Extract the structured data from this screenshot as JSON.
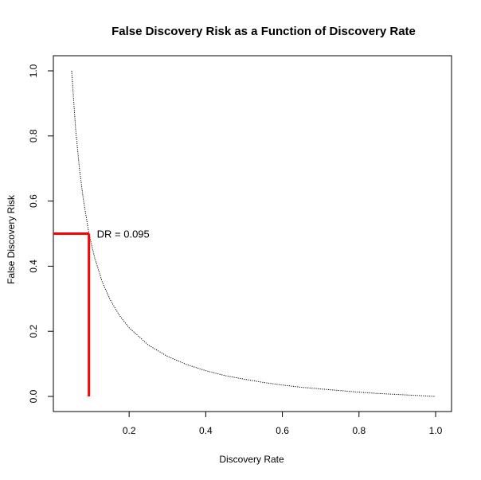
{
  "chart_data": {
    "type": "line",
    "title": "False Discovery Risk as a Function of Discovery Rate",
    "xlabel": "Discovery Rate",
    "ylabel": "False Discovery Risk",
    "xlim": [
      0.05,
      1.0
    ],
    "ylim": [
      0.0,
      1.0
    ],
    "x_ticks": [
      0.2,
      0.4,
      0.6,
      0.8,
      1.0
    ],
    "x_tick_labels": [
      "0.2",
      "0.4",
      "0.6",
      "0.8",
      "1.0"
    ],
    "y_ticks": [
      0.0,
      0.2,
      0.4,
      0.6,
      0.8,
      1.0
    ],
    "y_tick_labels": [
      "0.0",
      "0.2",
      "0.4",
      "0.6",
      "0.8",
      "1.0"
    ],
    "grid": false,
    "series": [
      {
        "line_style": "dotted",
        "color": "#000000",
        "x": [
          0.05,
          0.06,
          0.07,
          0.08,
          0.095,
          0.11,
          0.13,
          0.15,
          0.175,
          0.2,
          0.25,
          0.3,
          0.35,
          0.4,
          0.45,
          0.5,
          0.55,
          0.6,
          0.65,
          0.7,
          0.75,
          0.8,
          0.85,
          0.9,
          0.95,
          1.0
        ],
        "y": [
          1.0,
          0.826,
          0.702,
          0.609,
          0.5,
          0.426,
          0.351,
          0.298,
          0.248,
          0.211,
          0.158,
          0.123,
          0.098,
          0.079,
          0.064,
          0.053,
          0.043,
          0.035,
          0.028,
          0.023,
          0.018,
          0.013,
          0.009,
          0.006,
          0.003,
          0.0
        ]
      }
    ],
    "annotation": {
      "text": "DR = 0.095",
      "x": 0.095,
      "y": 0.5,
      "color": "#ff0000"
    }
  }
}
